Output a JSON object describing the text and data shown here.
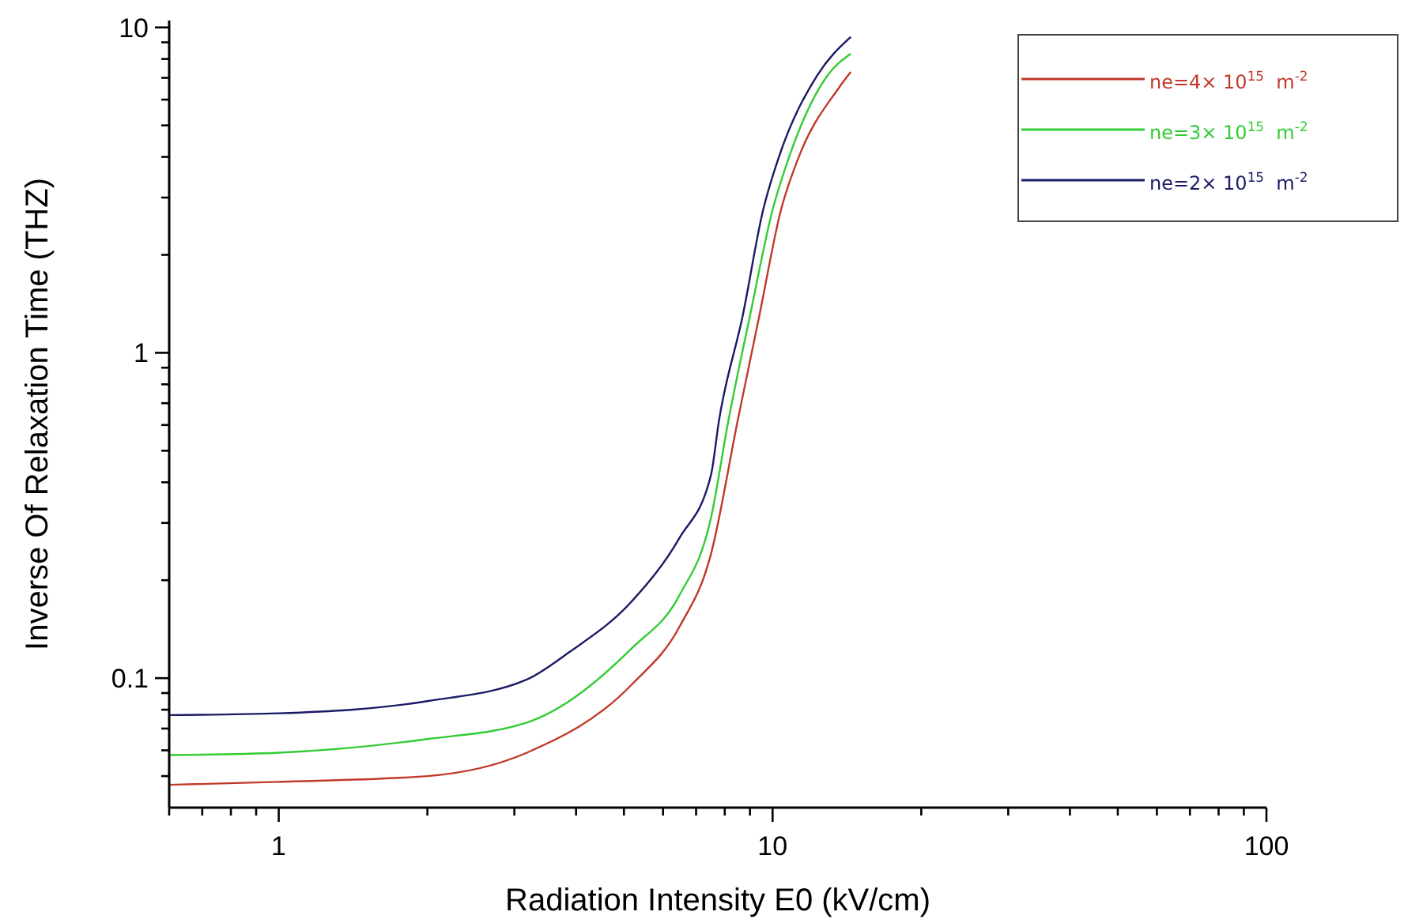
{
  "chart_data": {
    "type": "line",
    "xlabel": "Radiation Intensity E0 (kV/cm)",
    "ylabel": "Inverse Of Relaxation Time (THZ)",
    "log": "xy",
    "grid": false,
    "legend": "top right",
    "line_style": "solid",
    "marker": "none",
    "xlim": [
      0.6,
      100
    ],
    "ylim": [
      0.04,
      10.5
    ],
    "xticks": [
      {
        "value": 0.6,
        "label": null
      },
      {
        "value": 0.7,
        "label": null
      },
      {
        "value": 0.8,
        "label": null
      },
      {
        "value": 0.9,
        "label": null
      },
      1,
      {
        "value": 2,
        "label": null
      },
      {
        "value": 3,
        "label": null
      },
      {
        "value": 4,
        "label": null
      },
      {
        "value": 5,
        "label": null
      },
      {
        "value": 6,
        "label": null
      },
      {
        "value": 7,
        "label": null
      },
      {
        "value": 8,
        "label": null
      },
      {
        "value": 9,
        "label": null
      },
      10,
      {
        "value": 20,
        "label": null
      },
      {
        "value": 30,
        "label": null
      },
      {
        "value": 40,
        "label": null
      },
      {
        "value": 50,
        "label": null
      },
      {
        "value": 60,
        "label": null
      },
      {
        "value": 70,
        "label": null
      },
      {
        "value": 80,
        "label": null
      },
      {
        "value": 90,
        "label": null
      },
      100
    ],
    "yticks": [
      {
        "value": 0.05,
        "label": null
      },
      {
        "value": 0.06,
        "label": null
      },
      {
        "value": 0.07,
        "label": null
      },
      {
        "value": 0.08,
        "label": null
      },
      {
        "value": 0.09,
        "label": null
      },
      0.1,
      {
        "value": 0.2,
        "label": null
      },
      {
        "value": 0.3,
        "label": null
      },
      {
        "value": 0.4,
        "label": null
      },
      {
        "value": 0.5,
        "label": null
      },
      {
        "value": 0.6,
        "label": null
      },
      {
        "value": 0.7,
        "label": null
      },
      {
        "value": 0.8,
        "label": null
      },
      {
        "value": 0.9,
        "label": null
      },
      1,
      {
        "value": 2,
        "label": null
      },
      {
        "value": 3,
        "label": null
      },
      {
        "value": 4,
        "label": null
      },
      {
        "value": 5,
        "label": null
      },
      {
        "value": 6,
        "label": null
      },
      {
        "value": 7,
        "label": null
      },
      {
        "value": 8,
        "label": null
      },
      {
        "value": 9,
        "label": null
      },
      10
    ],
    "series": [
      {
        "name": "ne=4× 10$^{15}$  m$^{-2}$",
        "color": "#c0392b",
        "x": [
          0.6,
          1,
          2,
          3.18,
          5.2,
          6.48,
          7.5,
          8.5,
          9.4,
          10.4,
          11.3,
          13.6,
          14.4
        ],
        "values": [
          0.047,
          0.048,
          0.05,
          0.059,
          0.096,
          0.144,
          0.24,
          0.62,
          1.3,
          2.75,
          4.0,
          6.5,
          7.3
        ]
      },
      {
        "name": "ne=3× 10$^{15}$  m$^{-2}$",
        "color": "#33cc33",
        "x": [
          0.6,
          1,
          2,
          3.18,
          5.2,
          6.48,
          7.5,
          8.14,
          9.0,
          10.0,
          10.8,
          12.9,
          14.4
        ],
        "values": [
          0.058,
          0.059,
          0.065,
          0.073,
          0.124,
          0.18,
          0.31,
          0.62,
          1.3,
          2.75,
          4.0,
          7.1,
          8.3
        ]
      },
      {
        "name": "ne=2× 10$^{15}$  m$^{-2}$",
        "color": "#1a1a66",
        "x": [
          0.6,
          1,
          2,
          3.18,
          3.87,
          5.2,
          6.48,
          7.5,
          7.79,
          8.7,
          9.57,
          10.3,
          12.3,
          14.4
        ],
        "values": [
          0.077,
          0.078,
          0.085,
          0.099,
          0.12,
          0.173,
          0.27,
          0.42,
          0.62,
          1.3,
          2.75,
          4.0,
          7.1,
          9.35
        ]
      }
    ]
  }
}
